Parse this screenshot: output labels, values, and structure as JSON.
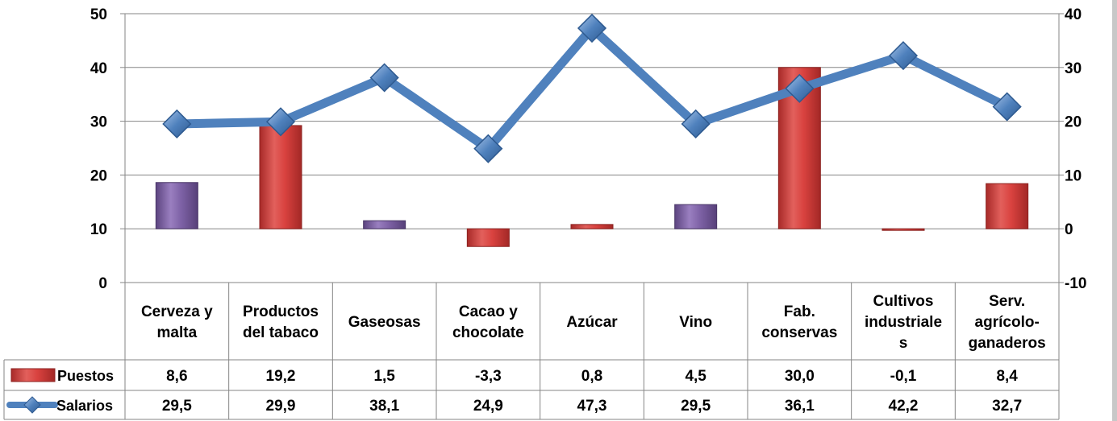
{
  "chart_data": {
    "type": "bar-line-combo",
    "categories": [
      [
        "Cerveza y",
        "malta"
      ],
      [
        "Productos",
        "del tabaco"
      ],
      [
        "Gaseosas"
      ],
      [
        "Cacao y",
        "chocolate"
      ],
      [
        "Azúcar"
      ],
      [
        "Vino"
      ],
      [
        "Fab.",
        "conservas"
      ],
      [
        "Cultivos",
        "industriale",
        "s"
      ],
      [
        "Serv.",
        "agrícolo-",
        "ganaderos"
      ]
    ],
    "series": [
      {
        "name": "Puestos",
        "type": "bar",
        "axis": "right",
        "values": [
          8.6,
          19.2,
          1.5,
          -3.3,
          0.8,
          4.5,
          30.0,
          -0.1,
          8.4
        ],
        "labels": [
          "8,6",
          "19,2",
          "1,5",
          "-3,3",
          "0,8",
          "4,5",
          "30,0",
          "-0,1",
          "8,4"
        ],
        "bar_colors": [
          "#7e62a6",
          "#d9423f",
          "#7e62a6",
          "#d9423f",
          "#d9423f",
          "#7e62a6",
          "#d9423f",
          "#d9423f",
          "#d9423f"
        ]
      },
      {
        "name": "Salarios",
        "type": "line",
        "axis": "left",
        "values": [
          29.5,
          29.9,
          38.1,
          24.9,
          47.3,
          29.5,
          36.1,
          42.2,
          32.7
        ],
        "labels": [
          "29,5",
          "29,9",
          "38,1",
          "24,9",
          "47,3",
          "29,5",
          "36,1",
          "42,2",
          "32,7"
        ],
        "color": "#4f81bd"
      }
    ],
    "y_left": {
      "range": [
        0,
        50
      ],
      "ticks": [
        "0",
        "10",
        "20",
        "30",
        "40",
        "50"
      ]
    },
    "y_right": {
      "range": [
        -10,
        40
      ],
      "ticks": [
        "-10",
        "0",
        "10",
        "20",
        "30",
        "40"
      ]
    },
    "grid": true,
    "legend": "data-table-left"
  },
  "colors": {
    "bar_red": "#d9423f",
    "bar_purple": "#7e62a6",
    "line_blue": "#4f81bd",
    "grid": "#868686"
  }
}
